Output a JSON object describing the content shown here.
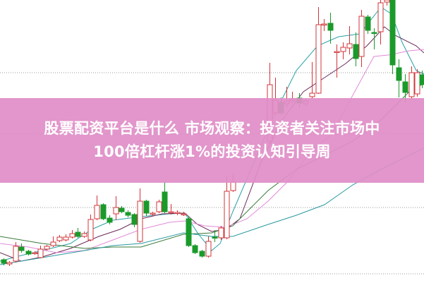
{
  "banner": {
    "title_line1": "股票配资平台是什么 市场观察：投资者关注市场中",
    "title_line2": "100倍杠杆涨1%的投资认知引导周"
  },
  "colors": {
    "up": "#d2343a",
    "down": "#1a9a2a",
    "banner": "#e08ec7",
    "grid": "#999999"
  },
  "chart": {
    "type": "candlestick",
    "grid": true,
    "axes_visible": false
  }
}
